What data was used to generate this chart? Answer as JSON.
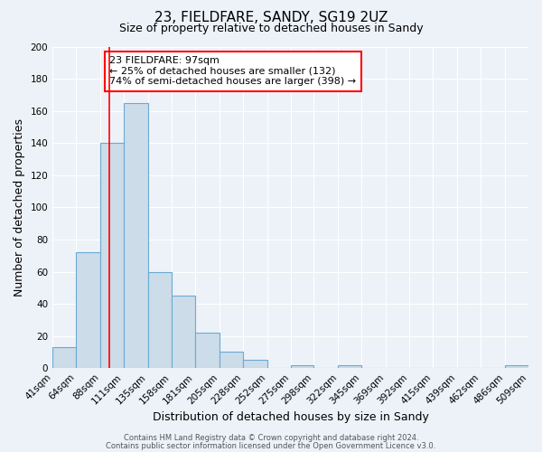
{
  "title": "23, FIELDFARE, SANDY, SG19 2UZ",
  "subtitle": "Size of property relative to detached houses in Sandy",
  "xlabel": "Distribution of detached houses by size in Sandy",
  "ylabel": "Number of detached properties",
  "footer_line1": "Contains HM Land Registry data © Crown copyright and database right 2024.",
  "footer_line2": "Contains public sector information licensed under the Open Government Licence v3.0.",
  "bar_edges": [
    41,
    64,
    88,
    111,
    135,
    158,
    181,
    205,
    228,
    252,
    275,
    298,
    322,
    345,
    369,
    392,
    415,
    439,
    462,
    486,
    509
  ],
  "bar_heights": [
    13,
    72,
    140,
    165,
    60,
    45,
    22,
    10,
    5,
    0,
    2,
    0,
    2,
    0,
    0,
    0,
    0,
    0,
    0,
    2
  ],
  "bar_color": "#ccdce8",
  "bar_edge_color": "#6aaad4",
  "ylim": [
    0,
    200
  ],
  "yticks": [
    0,
    20,
    40,
    60,
    80,
    100,
    120,
    140,
    160,
    180,
    200
  ],
  "red_line_x": 97,
  "annotation_text_line1": "23 FIELDFARE: 97sqm",
  "annotation_text_line2": "← 25% of detached houses are smaller (132)",
  "annotation_text_line3": "74% of semi-detached houses are larger (398) →",
  "tick_labels": [
    "41sqm",
    "64sqm",
    "88sqm",
    "111sqm",
    "135sqm",
    "158sqm",
    "181sqm",
    "205sqm",
    "228sqm",
    "252sqm",
    "275sqm",
    "298sqm",
    "322sqm",
    "345sqm",
    "369sqm",
    "392sqm",
    "415sqm",
    "439sqm",
    "462sqm",
    "486sqm",
    "509sqm"
  ],
  "background_color": "#edf2f9",
  "grid_color": "#ffffff",
  "title_fontsize": 11,
  "subtitle_fontsize": 9,
  "axis_label_fontsize": 9,
  "tick_fontsize": 7.5,
  "ylabel_fontsize": 9
}
